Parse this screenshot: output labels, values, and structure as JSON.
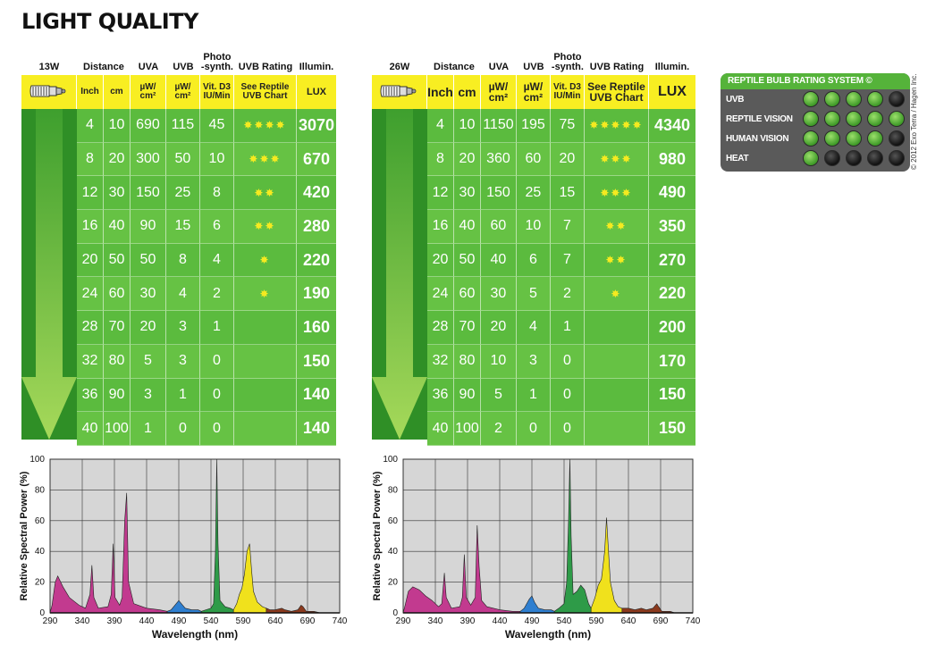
{
  "page_title": "LIGHT QUALITY",
  "headers": {
    "distance": "Distance",
    "uva": "UVA",
    "uvb": "UVB",
    "photo": "Photo\n-synth.",
    "rating": "UVB Rating",
    "illum": "Illumin."
  },
  "units": {
    "inch": "Inch",
    "cm": "cm",
    "uw": "µW/\ncm²",
    "vitd3": "Vit. D3\nIU/Min",
    "see_chart": "See Reptile\nUVB Chart",
    "lux": "LUX"
  },
  "tables": [
    {
      "wattage": "13W",
      "rows": [
        {
          "inch": "4",
          "cm": "10",
          "uva": "690",
          "uvb": "115",
          "photo": "45",
          "stars": 4,
          "lux": "3070"
        },
        {
          "inch": "8",
          "cm": "20",
          "uva": "300",
          "uvb": "50",
          "photo": "10",
          "stars": 3,
          "lux": "670"
        },
        {
          "inch": "12",
          "cm": "30",
          "uva": "150",
          "uvb": "25",
          "photo": "8",
          "stars": 2,
          "lux": "420"
        },
        {
          "inch": "16",
          "cm": "40",
          "uva": "90",
          "uvb": "15",
          "photo": "6",
          "stars": 2,
          "lux": "280"
        },
        {
          "inch": "20",
          "cm": "50",
          "uva": "50",
          "uvb": "8",
          "photo": "4",
          "stars": 1,
          "lux": "220"
        },
        {
          "inch": "24",
          "cm": "60",
          "uva": "30",
          "uvb": "4",
          "photo": "2",
          "stars": 1,
          "lux": "190"
        },
        {
          "inch": "28",
          "cm": "70",
          "uva": "20",
          "uvb": "3",
          "photo": "1",
          "stars": 0,
          "lux": "160"
        },
        {
          "inch": "32",
          "cm": "80",
          "uva": "5",
          "uvb": "3",
          "photo": "0",
          "stars": 0,
          "lux": "150"
        },
        {
          "inch": "36",
          "cm": "90",
          "uva": "3",
          "uvb": "1",
          "photo": "0",
          "stars": 0,
          "lux": "140"
        },
        {
          "inch": "40",
          "cm": "100",
          "uva": "1",
          "uvb": "0",
          "photo": "0",
          "stars": 0,
          "lux": "140"
        }
      ]
    },
    {
      "wattage": "26W",
      "rows": [
        {
          "inch": "4",
          "cm": "10",
          "uva": "1150",
          "uvb": "195",
          "photo": "75",
          "stars": 5,
          "lux": "4340"
        },
        {
          "inch": "8",
          "cm": "20",
          "uva": "360",
          "uvb": "60",
          "photo": "20",
          "stars": 3,
          "lux": "980"
        },
        {
          "inch": "12",
          "cm": "30",
          "uva": "150",
          "uvb": "25",
          "photo": "15",
          "stars": 3,
          "lux": "490"
        },
        {
          "inch": "16",
          "cm": "40",
          "uva": "60",
          "uvb": "10",
          "photo": "7",
          "stars": 2,
          "lux": "350"
        },
        {
          "inch": "20",
          "cm": "50",
          "uva": "40",
          "uvb": "6",
          "photo": "7",
          "stars": 2,
          "lux": "270"
        },
        {
          "inch": "24",
          "cm": "60",
          "uva": "30",
          "uvb": "5",
          "photo": "2",
          "stars": 1,
          "lux": "220"
        },
        {
          "inch": "28",
          "cm": "70",
          "uva": "20",
          "uvb": "4",
          "photo": "1",
          "stars": 0,
          "lux": "200"
        },
        {
          "inch": "32",
          "cm": "80",
          "uva": "10",
          "uvb": "3",
          "photo": "0",
          "stars": 0,
          "lux": "170"
        },
        {
          "inch": "36",
          "cm": "90",
          "uva": "5",
          "uvb": "1",
          "photo": "0",
          "stars": 0,
          "lux": "150"
        },
        {
          "inch": "40",
          "cm": "100",
          "uva": "2",
          "uvb": "0",
          "photo": "0",
          "stars": 0,
          "lux": "150"
        }
      ]
    }
  ],
  "rating_system": {
    "title": "REPTILE BULB RATING SYSTEM ©",
    "rows": [
      {
        "label": "UVB",
        "filled": 4
      },
      {
        "label": "REPTILE VISION",
        "filled": 5
      },
      {
        "label": "HUMAN VISION",
        "filled": 4
      },
      {
        "label": "HEAT",
        "filled": 1
      }
    ],
    "total": 5
  },
  "copyright": "© 2012 Exo Terra / Hagen Inc.",
  "chart_data": [
    {
      "type": "area",
      "title": "",
      "xlabel": "Wavelength (nm)",
      "ylabel": "Relative Spectral Power (%)",
      "xlim": [
        290,
        740
      ],
      "ylim": [
        0,
        100
      ],
      "xticks": [
        290,
        340,
        390,
        440,
        490,
        540,
        590,
        640,
        690,
        740
      ],
      "yticks": [
        0,
        20,
        40,
        60,
        80,
        100
      ],
      "grid": true,
      "series": [
        {
          "color": "#c23a8f",
          "points": [
            [
              290,
              0
            ],
            [
              293,
              5
            ],
            [
              298,
              20
            ],
            [
              302,
              24
            ],
            [
              310,
              17
            ],
            [
              320,
              10
            ],
            [
              335,
              5
            ],
            [
              345,
              3
            ],
            [
              352,
              12
            ],
            [
              355,
              31
            ],
            [
              358,
              10
            ],
            [
              365,
              3
            ],
            [
              380,
              4
            ],
            [
              385,
              12
            ],
            [
              388,
              45
            ],
            [
              391,
              10
            ],
            [
              398,
              5
            ],
            [
              402,
              10
            ],
            [
              406,
              60
            ],
            [
              409,
              78
            ],
            [
              412,
              20
            ],
            [
              420,
              6
            ],
            [
              440,
              3
            ],
            [
              460,
              2
            ],
            [
              472,
              1
            ]
          ]
        },
        {
          "color": "#2f7fd0",
          "points": [
            [
              472,
              1
            ],
            [
              478,
              2
            ],
            [
              486,
              6
            ],
            [
              490,
              8
            ],
            [
              494,
              6
            ],
            [
              500,
              3
            ],
            [
              510,
              2
            ],
            [
              520,
              2
            ],
            [
              525,
              1
            ]
          ]
        },
        {
          "color": "#2e9b48",
          "points": [
            [
              525,
              1
            ],
            [
              532,
              2
            ],
            [
              540,
              3
            ],
            [
              544,
              6
            ],
            [
              547,
              40
            ],
            [
              549,
              100
            ],
            [
              551,
              45
            ],
            [
              554,
              8
            ],
            [
              562,
              4
            ],
            [
              570,
              3
            ],
            [
              575,
              2
            ]
          ]
        },
        {
          "color": "#f0e11c",
          "points": [
            [
              575,
              2
            ],
            [
              580,
              6
            ],
            [
              584,
              12
            ],
            [
              588,
              16
            ],
            [
              592,
              25
            ],
            [
              596,
              40
            ],
            [
              600,
              45
            ],
            [
              603,
              28
            ],
            [
              606,
              14
            ],
            [
              612,
              7
            ],
            [
              620,
              4
            ],
            [
              626,
              3
            ]
          ]
        },
        {
          "color": "#8b3a1e",
          "points": [
            [
              626,
              3
            ],
            [
              632,
              2
            ],
            [
              640,
              2
            ],
            [
              650,
              3
            ],
            [
              655,
              2
            ],
            [
              665,
              1
            ],
            [
              675,
              2
            ],
            [
              680,
              5
            ],
            [
              683,
              4
            ],
            [
              688,
              1
            ],
            [
              700,
              1
            ],
            [
              710,
              0
            ]
          ]
        }
      ]
    },
    {
      "type": "area",
      "title": "",
      "xlabel": "Wavelength (nm)",
      "ylabel": "Relative Spectral Power (%)",
      "xlim": [
        290,
        740
      ],
      "ylim": [
        0,
        100
      ],
      "xticks": [
        290,
        340,
        390,
        440,
        490,
        540,
        590,
        640,
        690,
        740
      ],
      "yticks": [
        0,
        20,
        40,
        60,
        80,
        100
      ],
      "grid": true,
      "series": [
        {
          "color": "#c23a8f",
          "points": [
            [
              290,
              0
            ],
            [
              293,
              5
            ],
            [
              298,
              14
            ],
            [
              305,
              17
            ],
            [
              315,
              15
            ],
            [
              325,
              11
            ],
            [
              335,
              8
            ],
            [
              345,
              4
            ],
            [
              350,
              6
            ],
            [
              354,
              26
            ],
            [
              357,
              10
            ],
            [
              365,
              3
            ],
            [
              378,
              4
            ],
            [
              382,
              10
            ],
            [
              385,
              38
            ],
            [
              388,
              10
            ],
            [
              395,
              5
            ],
            [
              402,
              10
            ],
            [
              405,
              57
            ],
            [
              408,
              30
            ],
            [
              412,
              8
            ],
            [
              420,
              4
            ],
            [
              440,
              2
            ],
            [
              460,
              1
            ],
            [
              472,
              1
            ]
          ]
        },
        {
          "color": "#2f7fd0",
          "points": [
            [
              472,
              1
            ],
            [
              478,
              3
            ],
            [
              486,
              9
            ],
            [
              490,
              11
            ],
            [
              494,
              7
            ],
            [
              500,
              3
            ],
            [
              510,
              2
            ],
            [
              520,
              2
            ],
            [
              525,
              1
            ]
          ]
        },
        {
          "color": "#2e9b48",
          "points": [
            [
              525,
              1
            ],
            [
              532,
              3
            ],
            [
              540,
              6
            ],
            [
              544,
              20
            ],
            [
              547,
              60
            ],
            [
              549,
              100
            ],
            [
              551,
              50
            ],
            [
              554,
              12
            ],
            [
              560,
              14
            ],
            [
              566,
              18
            ],
            [
              572,
              15
            ],
            [
              578,
              6
            ],
            [
              582,
              3
            ]
          ]
        },
        {
          "color": "#f0e11c",
          "points": [
            [
              582,
              3
            ],
            [
              588,
              10
            ],
            [
              593,
              18
            ],
            [
              598,
              22
            ],
            [
              603,
              40
            ],
            [
              606,
              62
            ],
            [
              609,
              40
            ],
            [
              612,
              20
            ],
            [
              618,
              8
            ],
            [
              624,
              4
            ],
            [
              630,
              3
            ]
          ]
        },
        {
          "color": "#8b3a1e",
          "points": [
            [
              630,
              3
            ],
            [
              640,
              3
            ],
            [
              650,
              2
            ],
            [
              660,
              3
            ],
            [
              668,
              2
            ],
            [
              678,
              3
            ],
            [
              684,
              6
            ],
            [
              687,
              4
            ],
            [
              692,
              1
            ],
            [
              705,
              1
            ],
            [
              712,
              0
            ]
          ]
        }
      ]
    }
  ]
}
